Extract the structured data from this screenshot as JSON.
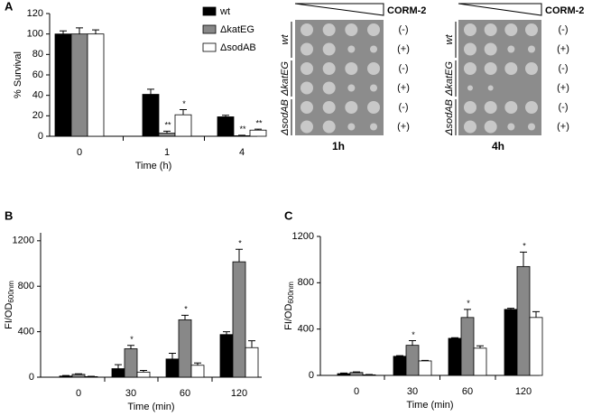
{
  "chart_data": [
    {
      "type": "bar",
      "panel": "A",
      "ylabel": "% Survival",
      "xlabel": "Time (h)",
      "categories": [
        "0",
        "1",
        "4"
      ],
      "ylim": [
        0,
        120
      ],
      "yticks": [
        0,
        20,
        40,
        60,
        80,
        100,
        120
      ],
      "series": [
        {
          "name": "wt",
          "color": "#000000",
          "values": [
            100,
            41,
            19
          ],
          "errors": [
            3,
            5,
            1.5
          ],
          "sig": [
            null,
            null,
            null
          ]
        },
        {
          "name": "ΔkatEG",
          "color": "#888888",
          "values": [
            100,
            3,
            0.5
          ],
          "errors": [
            6,
            2,
            0.5
          ],
          "sig": [
            null,
            "**",
            "**"
          ]
        },
        {
          "name": "ΔsodAB",
          "color": "#ffffff",
          "values": [
            100,
            21,
            6
          ],
          "errors": [
            4,
            5,
            1
          ],
          "sig": [
            null,
            "*",
            "**"
          ]
        }
      ]
    },
    {
      "type": "bar",
      "panel": "B",
      "ylabel": "FI/OD",
      "ylabel_sub": "600nm",
      "xlabel": "Time (min)",
      "categories": [
        "0",
        "30",
        "60",
        "120"
      ],
      "ylim": [
        0,
        1270
      ],
      "yticks": [
        0,
        400,
        800,
        1200
      ],
      "series": [
        {
          "name": "wt",
          "color": "#000000",
          "values": [
            10,
            75,
            160,
            375
          ],
          "errors": [
            5,
            35,
            50,
            25
          ],
          "sig": [
            null,
            null,
            null,
            null
          ]
        },
        {
          "name": "ΔkatEG",
          "color": "#888888",
          "values": [
            25,
            250,
            505,
            1015
          ],
          "errors": [
            5,
            30,
            40,
            110
          ],
          "sig": [
            null,
            "*",
            "*",
            "*"
          ]
        },
        {
          "name": "ΔsodAB",
          "color": "#ffffff",
          "values": [
            5,
            45,
            105,
            260
          ],
          "errors": [
            3,
            15,
            20,
            60
          ],
          "sig": [
            null,
            null,
            null,
            null
          ]
        }
      ]
    },
    {
      "type": "bar",
      "panel": "C",
      "ylabel": "FI/OD",
      "ylabel_sub": "600nm",
      "xlabel": "Time  (min)",
      "categories": [
        "0",
        "30",
        "60",
        "120"
      ],
      "ylim": [
        0,
        1200
      ],
      "yticks": [
        0,
        400,
        800,
        1200
      ],
      "series": [
        {
          "name": "wt",
          "color": "#000000",
          "values": [
            15,
            165,
            320,
            570
          ],
          "errors": [
            5,
            5,
            5,
            10
          ],
          "sig": [
            null,
            null,
            null,
            null
          ]
        },
        {
          "name": "ΔkatEG",
          "color": "#888888",
          "values": [
            25,
            260,
            500,
            940
          ],
          "errors": [
            5,
            40,
            70,
            125
          ],
          "sig": [
            null,
            "*",
            "*",
            "*"
          ]
        },
        {
          "name": "ΔsodAB",
          "color": "#ffffff",
          "values": [
            5,
            125,
            235,
            500
          ],
          "errors": [
            3,
            5,
            20,
            50
          ],
          "sig": [
            null,
            null,
            null,
            null
          ]
        }
      ]
    }
  ],
  "plates": {
    "treatment": "CORM-2",
    "strains": [
      "wt",
      "ΔkatEG",
      "ΔsodAB"
    ],
    "conditions": [
      "(-)",
      "(+)"
    ],
    "times": [
      "1h",
      "4h"
    ]
  }
}
